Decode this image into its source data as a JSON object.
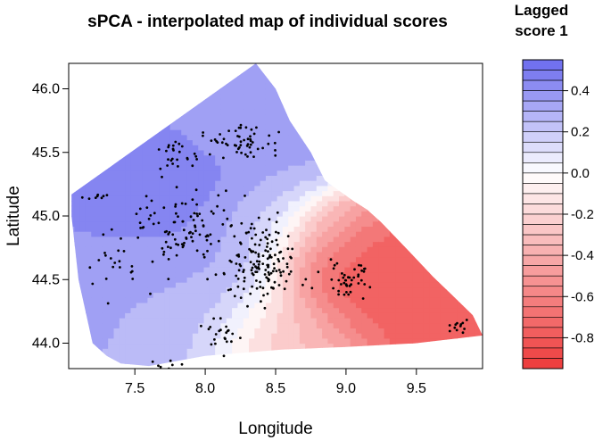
{
  "chart_data": {
    "type": "heatmap",
    "title": "sPCA - interpolated map of individual scores",
    "xlabel": "Longitude",
    "ylabel": "Latitude",
    "xlim": [
      7.03,
      9.97
    ],
    "ylim": [
      43.8,
      46.2
    ],
    "xticks": [
      7.5,
      8.0,
      8.5,
      9.0,
      9.5
    ],
    "xtick_labels": [
      "7.5",
      "8.0",
      "8.5",
      "9.0",
      "9.5"
    ],
    "yticks": [
      44.0,
      44.5,
      45.0,
      45.5,
      46.0
    ],
    "ytick_labels": [
      "44.0",
      "44.5",
      "45.0",
      "45.5",
      "46.0"
    ],
    "legend": {
      "title_lines": [
        "Lagged",
        "score 1"
      ],
      "range": [
        -0.95,
        0.55
      ],
      "ticks": [
        0.4,
        0.2,
        0.0,
        -0.2,
        -0.4,
        -0.6,
        -0.8
      ],
      "tick_labels": [
        "0.4",
        "0.2",
        "0.0",
        "-0.2",
        "-0.4",
        "-0.6",
        "-0.8"
      ],
      "high_color": "#6a6aee",
      "mid_color": "#ffffff",
      "low_color": "#ee3a3a"
    },
    "region_outline": [
      [
        7.05,
        45.17
      ],
      [
        8.36,
        46.2
      ],
      [
        8.5,
        46.0
      ],
      [
        8.6,
        45.75
      ],
      [
        8.75,
        45.5
      ],
      [
        8.85,
        45.28
      ],
      [
        9.05,
        45.12
      ],
      [
        9.15,
        45.05
      ],
      [
        9.25,
        44.95
      ],
      [
        9.45,
        44.72
      ],
      [
        9.62,
        44.52
      ],
      [
        9.78,
        44.35
      ],
      [
        9.9,
        44.22
      ],
      [
        9.97,
        44.06
      ],
      [
        9.5,
        44.0
      ],
      [
        9.0,
        43.97
      ],
      [
        8.55,
        43.95
      ],
      [
        8.0,
        43.9
      ],
      [
        7.6,
        43.82
      ],
      [
        7.4,
        43.84
      ],
      [
        7.3,
        43.9
      ],
      [
        7.2,
        44.0
      ],
      [
        7.1,
        44.5
      ],
      [
        7.05,
        45.0
      ]
    ],
    "score_field_centers": [
      {
        "lon": 7.8,
        "lat": 45.05,
        "score": 0.55,
        "spread": 0.45
      },
      {
        "lon": 7.45,
        "lat": 44.6,
        "score": 0.35,
        "spread": 0.5
      },
      {
        "lon": 8.35,
        "lat": 45.7,
        "score": 0.3,
        "spread": 0.35
      },
      {
        "lon": 8.0,
        "lat": 44.4,
        "score": 0.2,
        "spread": 0.45
      },
      {
        "lon": 8.4,
        "lat": 44.95,
        "score": 0.1,
        "spread": 0.3
      },
      {
        "lon": 9.05,
        "lat": 44.55,
        "score": -0.95,
        "spread": 0.3
      },
      {
        "lon": 9.3,
        "lat": 44.4,
        "score": -0.7,
        "spread": 0.35
      },
      {
        "lon": 9.75,
        "lat": 44.15,
        "score": -0.8,
        "spread": 0.25
      },
      {
        "lon": 8.9,
        "lat": 44.8,
        "score": -0.5,
        "spread": 0.25
      },
      {
        "lon": 8.6,
        "lat": 44.1,
        "score": -0.35,
        "spread": 0.3
      }
    ],
    "point_clusters": [
      {
        "lon": 8.4,
        "lat": 44.65,
        "sx": 0.22,
        "sy": 0.28,
        "n": 150
      },
      {
        "lon": 7.85,
        "lat": 44.9,
        "sx": 0.28,
        "sy": 0.22,
        "n": 90
      },
      {
        "lon": 8.25,
        "lat": 45.6,
        "sx": 0.22,
        "sy": 0.12,
        "n": 55
      },
      {
        "lon": 7.8,
        "lat": 45.45,
        "sx": 0.15,
        "sy": 0.12,
        "n": 25
      },
      {
        "lon": 9.05,
        "lat": 44.5,
        "sx": 0.18,
        "sy": 0.15,
        "n": 45
      },
      {
        "lon": 8.1,
        "lat": 44.05,
        "sx": 0.12,
        "sy": 0.12,
        "n": 22
      },
      {
        "lon": 7.4,
        "lat": 44.7,
        "sx": 0.22,
        "sy": 0.3,
        "n": 25
      },
      {
        "lon": 9.8,
        "lat": 44.14,
        "sx": 0.06,
        "sy": 0.04,
        "n": 12
      },
      {
        "lon": 7.2,
        "lat": 45.15,
        "sx": 0.1,
        "sy": 0.03,
        "n": 8
      },
      {
        "lon": 7.75,
        "lat": 43.82,
        "sx": 0.12,
        "sy": 0.03,
        "n": 8
      }
    ]
  }
}
